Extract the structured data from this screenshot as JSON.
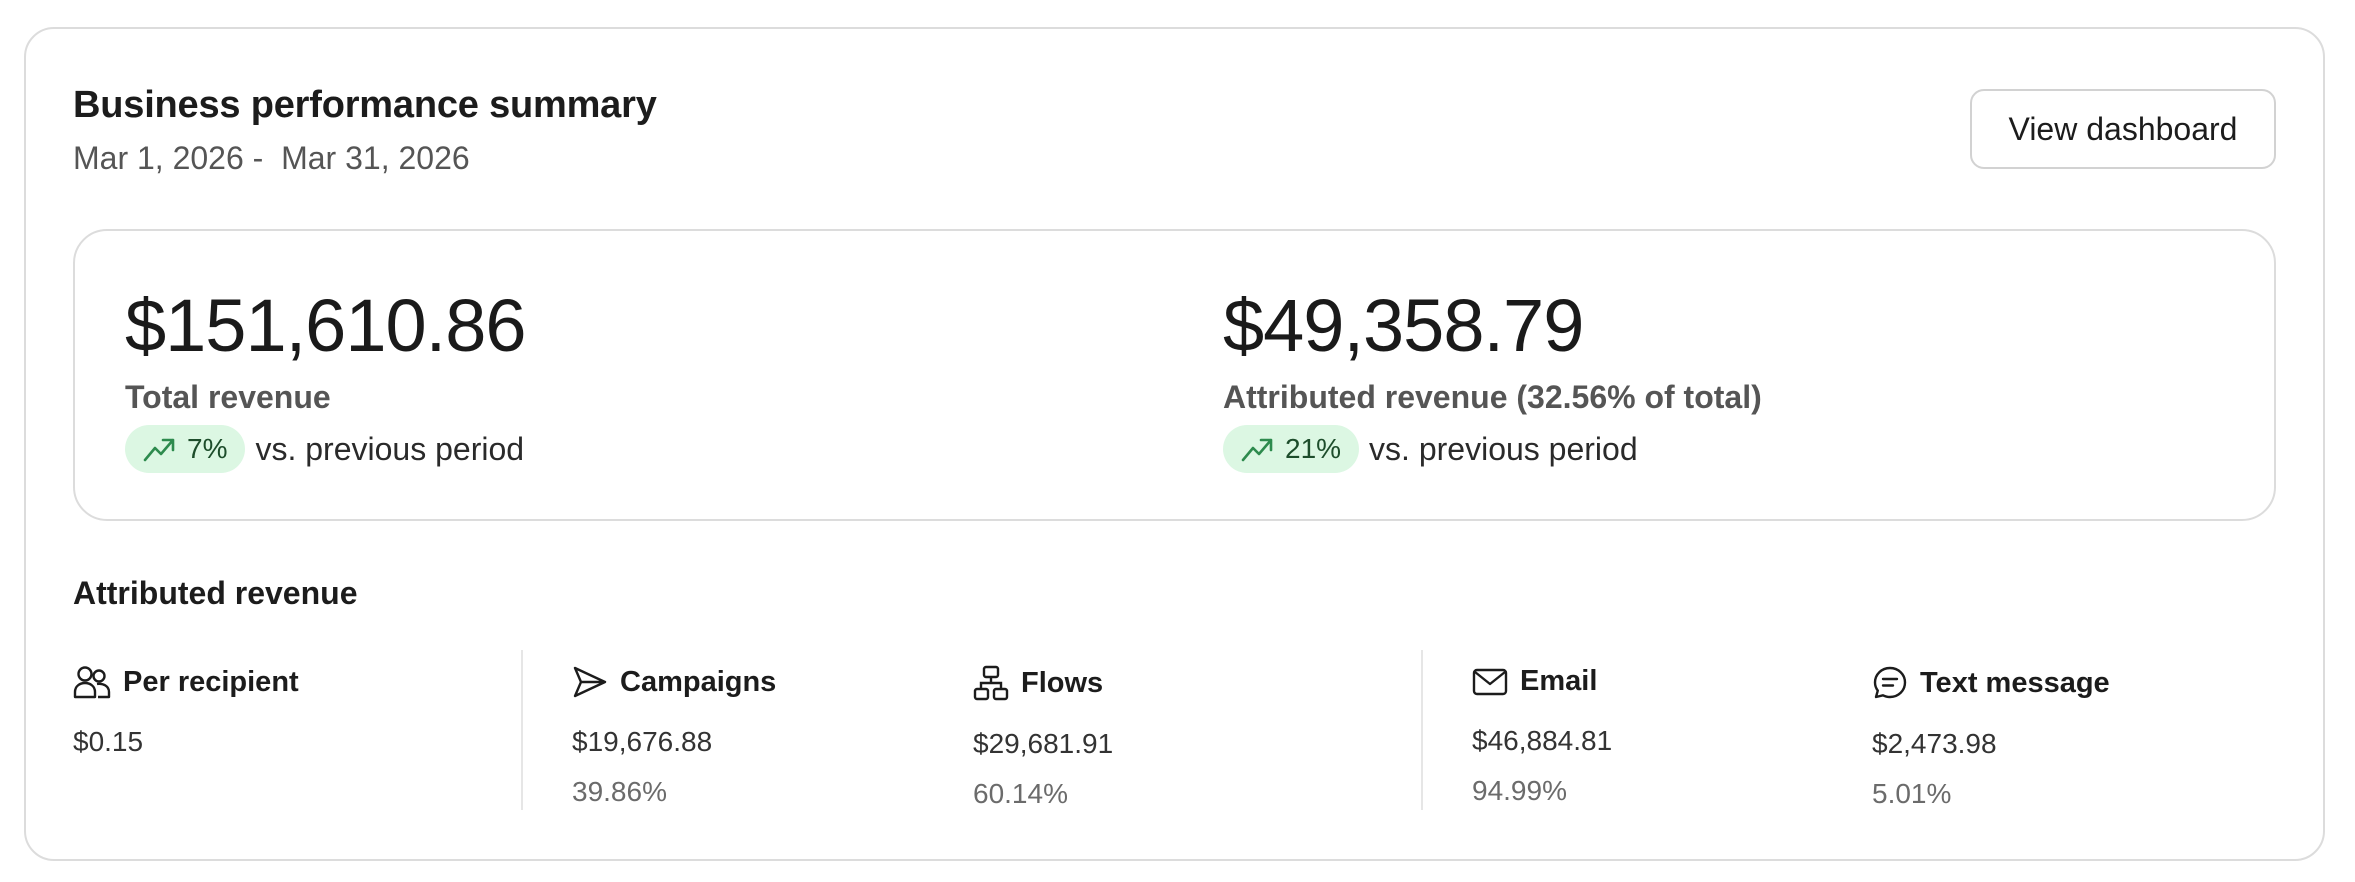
{
  "header": {
    "title": "Business performance summary",
    "date_range": "Mar 1, 2026 -  Mar 31, 2026",
    "view_dashboard_label": "View dashboard"
  },
  "summary": {
    "total": {
      "amount": "$151,610.86",
      "label": "Total revenue",
      "change": "7%",
      "change_direction": "up",
      "change_suffix": "vs. previous period"
    },
    "attributed": {
      "amount": "$49,358.79",
      "label": "Attributed revenue (32.56% of total)",
      "change": "21%",
      "change_direction": "up",
      "change_suffix": "vs. previous period"
    }
  },
  "attributed_section": {
    "title": "Attributed revenue",
    "columns": [
      {
        "icon": "people-icon",
        "label": "Per recipient",
        "value": "$0.15",
        "percent": ""
      },
      {
        "icon": "send-icon",
        "label": "Campaigns",
        "value": "$19,676.88",
        "percent": "39.86%"
      },
      {
        "icon": "flow-icon",
        "label": "Flows",
        "value": "$29,681.91",
        "percent": "60.14%"
      },
      {
        "icon": "mail-icon",
        "label": "Email",
        "value": "$46,884.81",
        "percent": "94.99%"
      },
      {
        "icon": "message-icon",
        "label": "Text message",
        "value": "$2,473.98",
        "percent": "5.01%"
      }
    ]
  },
  "colors": {
    "positive_pill_bg": "#dcf7e3",
    "positive_icon": "#2e8b4e",
    "border": "#dcdcdc"
  }
}
